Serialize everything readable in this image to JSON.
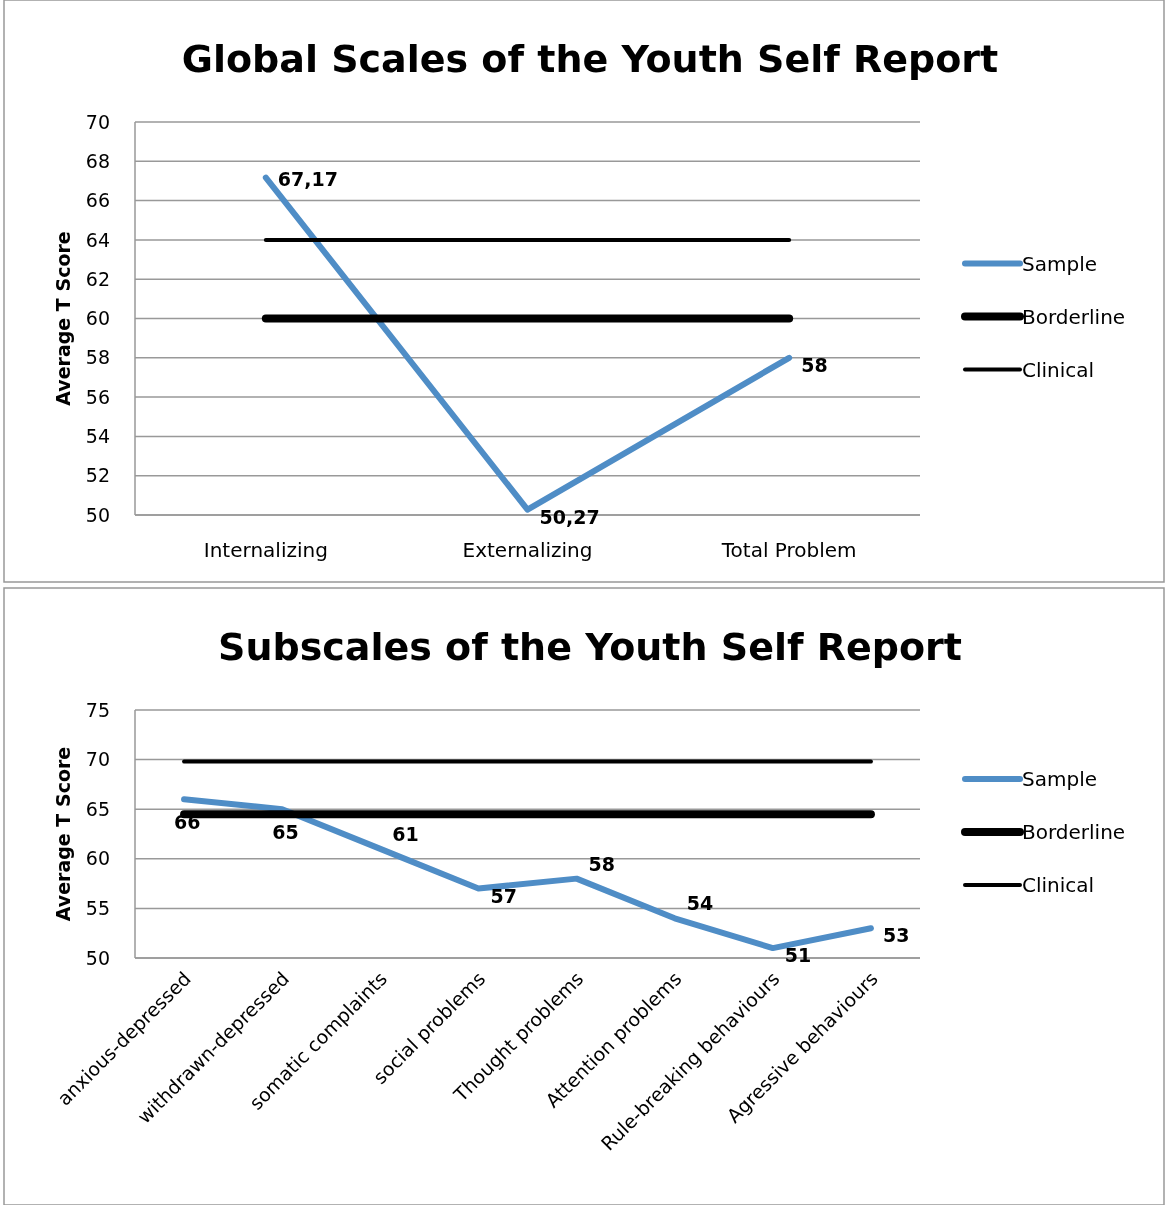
{
  "chart_data": [
    {
      "type": "line",
      "title": "Global Scales of the Youth Self Report",
      "ylabel": "Average T Score",
      "categories": [
        "Internalizing",
        "Externalizing",
        "Total Problem"
      ],
      "series": [
        {
          "name": "Sample",
          "color": "#4f8dc6",
          "values": [
            67.17,
            50.27,
            58
          ],
          "value_labels": [
            "67,17",
            "50,27",
            "58"
          ]
        },
        {
          "name": "Borderline",
          "color": "#000000",
          "values": [
            60,
            60,
            60
          ]
        },
        {
          "name": "Clinical",
          "color": "#000000",
          "values": [
            64,
            64,
            64
          ]
        }
      ],
      "ylim": [
        50,
        70
      ],
      "yticks": [
        50,
        52,
        54,
        56,
        58,
        60,
        62,
        64,
        66,
        68,
        70
      ],
      "grid": "y",
      "legend": "right",
      "marker": "none"
    },
    {
      "type": "line",
      "title": "Subscales of the Youth Self Report",
      "ylabel": "Average T Score",
      "categories": [
        "anxious-depressed",
        "withdrawn-depressed",
        "somatic complaints",
        "social problems",
        "Thought problems",
        "Attention problems",
        "Rule-breaking behaviours",
        "Agressive behaviours"
      ],
      "series": [
        {
          "name": "Sample",
          "color": "#4f8dc6",
          "values": [
            66,
            65,
            61,
            57,
            58,
            54,
            51,
            53
          ],
          "value_labels": [
            "66",
            "65",
            "61",
            "57",
            "58",
            "54",
            "51",
            "53"
          ]
        },
        {
          "name": "Borderline",
          "color": "#000000",
          "values": [
            64.5,
            64.5,
            64.5,
            64.5,
            64.5,
            64.5,
            64.5,
            64.5
          ]
        },
        {
          "name": "Clinical",
          "color": "#000000",
          "values": [
            69.8,
            69.8,
            69.8,
            69.8,
            69.8,
            69.8,
            69.8,
            69.8
          ]
        }
      ],
      "ylim": [
        50,
        75
      ],
      "yticks": [
        50,
        55,
        60,
        65,
        70,
        75
      ],
      "grid": "y",
      "legend": "right",
      "marker": "none"
    }
  ]
}
